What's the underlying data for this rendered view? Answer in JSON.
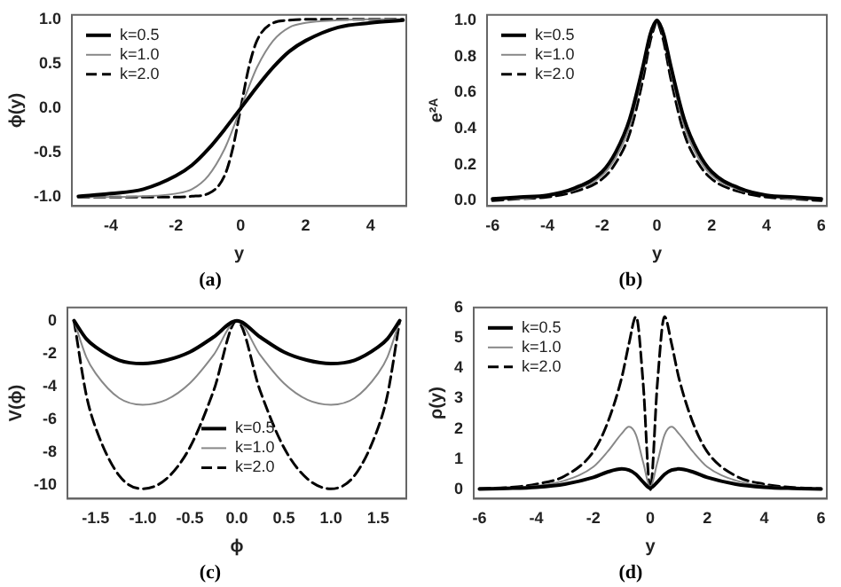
{
  "chart_data": [
    {
      "type": "line",
      "xlabel": "y",
      "ylabel": "ϕ(y)",
      "annotations": [
        "(a)"
      ],
      "grid": false,
      "legend": "top left",
      "xlim": [
        -5.2,
        5.1
      ],
      "ylim": [
        -1.1,
        1.05
      ],
      "xticks": [
        -4,
        -2,
        0,
        2,
        4
      ],
      "yticks": [
        {
          "value": -1,
          "label": "-1.0"
        },
        {
          "value": -0.5,
          "label": "-0.5"
        },
        {
          "value": 0,
          "label": "0.0"
        },
        {
          "value": 0.5,
          "label": "0.5"
        },
        {
          "value": 1,
          "label": "1.0"
        }
      ],
      "x": [
        -5,
        -4,
        -3,
        -2,
        -1.5,
        -1,
        -0.5,
        -0.25,
        0,
        0.25,
        0.5,
        1,
        1.5,
        2,
        3,
        4,
        5
      ],
      "series": [
        {
          "name": "k=0.5",
          "color": "#000000",
          "line_style": "solid",
          "values": [
            -0.99,
            -0.96,
            -0.91,
            -0.76,
            -0.64,
            -0.46,
            -0.24,
            -0.12,
            0,
            0.12,
            0.24,
            0.46,
            0.64,
            0.76,
            0.91,
            0.96,
            0.99
          ]
        },
        {
          "name": "k=1.0",
          "color": "#888888",
          "line_style": "solid",
          "values": [
            -1,
            -1,
            -0.99,
            -0.96,
            -0.91,
            -0.76,
            -0.46,
            -0.24,
            0,
            0.24,
            0.46,
            0.76,
            0.91,
            0.96,
            0.99,
            1,
            1
          ]
        },
        {
          "name": "k=2.0",
          "color": "#000000",
          "line_style": "dashed",
          "values": [
            -1,
            -1,
            -1,
            -1,
            -0.99,
            -0.96,
            -0.76,
            -0.46,
            0,
            0.46,
            0.76,
            0.96,
            0.99,
            1,
            1,
            1,
            1
          ]
        }
      ]
    },
    {
      "type": "line",
      "xlabel": "y",
      "ylabel": "e²ᴬ",
      "annotations": [
        "(b)"
      ],
      "grid": false,
      "legend": "top left",
      "xlim": [
        -6.2,
        6.2
      ],
      "ylim": [
        -0.03,
        1.03
      ],
      "xticks": [
        -6,
        -4,
        -2,
        0,
        2,
        4,
        6
      ],
      "yticks": [
        {
          "value": 0,
          "label": "0.0"
        },
        {
          "value": 0.2,
          "label": "0.2"
        },
        {
          "value": 0.4,
          "label": "0.4"
        },
        {
          "value": 0.6,
          "label": "0.6"
        },
        {
          "value": 0.8,
          "label": "0.8"
        },
        {
          "value": 1,
          "label": "1.0"
        }
      ],
      "x": [
        -6,
        -5,
        -4,
        -3,
        -2,
        -1.5,
        -1,
        -0.5,
        -0.25,
        -0.1,
        0,
        0.1,
        0.25,
        0.5,
        1,
        1.5,
        2,
        3,
        4,
        5,
        6
      ],
      "series": [
        {
          "name": "k=0.5",
          "color": "#000000",
          "line_style": "solid",
          "values": [
            0.01,
            0.02,
            0.03,
            0.07,
            0.16,
            0.27,
            0.45,
            0.75,
            0.92,
            0.98,
            1,
            0.98,
            0.92,
            0.75,
            0.45,
            0.27,
            0.16,
            0.07,
            0.03,
            0.02,
            0.01
          ]
        },
        {
          "name": "k=1.0",
          "color": "#888888",
          "line_style": "solid",
          "values": [
            0.01,
            0.01,
            0.03,
            0.06,
            0.14,
            0.24,
            0.41,
            0.72,
            0.9,
            0.97,
            1,
            0.97,
            0.9,
            0.72,
            0.41,
            0.24,
            0.14,
            0.06,
            0.03,
            0.01,
            0.01
          ]
        },
        {
          "name": "k=2.0",
          "color": "#000000",
          "line_style": "dashed",
          "values": [
            0,
            0.01,
            0.02,
            0.05,
            0.12,
            0.21,
            0.37,
            0.68,
            0.88,
            0.96,
            1,
            0.96,
            0.88,
            0.68,
            0.37,
            0.21,
            0.12,
            0.05,
            0.02,
            0.01,
            0
          ]
        }
      ]
    },
    {
      "type": "line",
      "xlabel": "ϕ",
      "ylabel": "V(ϕ)",
      "annotations": [
        "(c)"
      ],
      "grid": false,
      "legend": "bottom",
      "xlim": [
        -1.8,
        1.8
      ],
      "ylim": [
        -10.8,
        0.8
      ],
      "xticks": [
        {
          "value": -1.5,
          "label": "-1.5"
        },
        {
          "value": -1,
          "label": "-1.0"
        },
        {
          "value": -0.5,
          "label": "-0.5"
        },
        {
          "value": 0,
          "label": "0.0"
        },
        {
          "value": 0.5,
          "label": "0.5"
        },
        {
          "value": 1,
          "label": "1.0"
        },
        {
          "value": 1.5,
          "label": "1.5"
        }
      ],
      "yticks": [
        -10,
        -8,
        -6,
        -4,
        -2,
        0
      ],
      "x": [
        -1.73,
        -1.6,
        -1.5,
        -1.25,
        -1,
        -0.75,
        -0.5,
        -0.25,
        0,
        0.25,
        0.5,
        0.75,
        1,
        1.25,
        1.5,
        1.6,
        1.73
      ],
      "series": [
        {
          "name": "k=0.5",
          "color": "#000000",
          "line_style": "solid",
          "values": [
            0,
            -1.1,
            -1.6,
            -2.4,
            -2.6,
            -2.4,
            -1.9,
            -1,
            0,
            -1,
            -1.9,
            -2.4,
            -2.6,
            -2.4,
            -1.6,
            -1.1,
            0
          ]
        },
        {
          "name": "k=1.0",
          "color": "#888888",
          "line_style": "solid",
          "values": [
            0,
            -2.2,
            -3.2,
            -4.7,
            -5.1,
            -4.8,
            -3.8,
            -2.1,
            0,
            -2.1,
            -3.8,
            -4.8,
            -5.1,
            -4.7,
            -3.2,
            -2.2,
            0
          ]
        },
        {
          "name": "k=2.0",
          "color": "#000000",
          "line_style": "dashed",
          "values": [
            0,
            -4.5,
            -6.5,
            -9.4,
            -10.2,
            -9.6,
            -7.7,
            -4.3,
            0,
            -4.3,
            -7.7,
            -9.6,
            -10.2,
            -9.4,
            -6.5,
            -4.5,
            0
          ]
        }
      ]
    },
    {
      "type": "line",
      "xlabel": "y",
      "ylabel": "ρ(y)",
      "annotations": [
        "(d)"
      ],
      "grid": false,
      "legend": "top left",
      "xlim": [
        -6.2,
        6.2
      ],
      "ylim": [
        -0.3,
        6
      ],
      "xticks": [
        -6,
        -4,
        -2,
        0,
        2,
        4,
        6
      ],
      "yticks": [
        0,
        1,
        2,
        3,
        4,
        5,
        6
      ],
      "x": [
        -6,
        -5,
        -4,
        -3,
        -2,
        -1.5,
        -1,
        -0.75,
        -0.5,
        -0.25,
        0,
        0.25,
        0.5,
        0.75,
        1,
        1.5,
        2,
        3,
        4,
        5,
        6
      ],
      "series": [
        {
          "name": "k=0.5",
          "color": "#000000",
          "line_style": "solid",
          "values": [
            0.02,
            0.04,
            0.08,
            0.18,
            0.4,
            0.58,
            0.68,
            0.64,
            0.5,
            0.25,
            0.05,
            0.25,
            0.5,
            0.64,
            0.68,
            0.58,
            0.4,
            0.18,
            0.08,
            0.04,
            0.02
          ]
        },
        {
          "name": "k=1.0",
          "color": "#888888",
          "line_style": "solid",
          "values": [
            0.02,
            0.05,
            0.12,
            0.3,
            0.75,
            1.25,
            1.85,
            2.07,
            1.8,
            0.9,
            0.1,
            0.9,
            1.8,
            2.07,
            1.85,
            1.25,
            0.75,
            0.3,
            0.12,
            0.05,
            0.02
          ]
        },
        {
          "name": "k=2.0",
          "color": "#000000",
          "line_style": "dashed",
          "values": [
            0.03,
            0.07,
            0.18,
            0.45,
            1.25,
            2.2,
            3.7,
            4.8,
            5.7,
            3.5,
            0,
            3.5,
            5.7,
            4.8,
            3.7,
            2.2,
            1.25,
            0.45,
            0.18,
            0.07,
            0.03
          ]
        }
      ]
    }
  ]
}
